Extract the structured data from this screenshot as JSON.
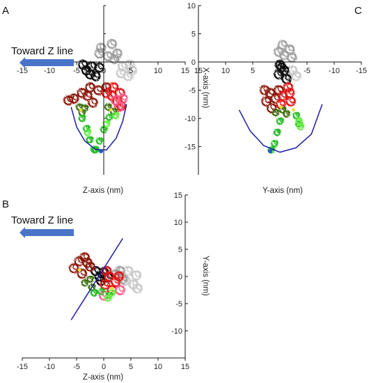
{
  "figure": {
    "toward_label": "Toward Z line",
    "colors": {
      "axis": "#111111",
      "arc": "#1a1aa8",
      "arrow": "#4a74c8",
      "gray": "#9e9e9e",
      "light_gray": "#c8c8c8",
      "black": "#111111",
      "dark_red": "#8b1a0e",
      "red": "#e01818",
      "pink": "#ff5c8a",
      "dark_green": "#3c6e10",
      "green": "#22bb22",
      "light_green": "#66ee44",
      "yellow": "#e8e030",
      "blue_dot": "#2255cc"
    }
  },
  "chart_data": [
    {
      "type": "scatter",
      "panel_label": "A",
      "xlabel": "Z-axis (nm)",
      "ylabel": "",
      "xlim": [
        -15,
        15
      ],
      "ylim": [
        -20,
        10
      ],
      "x_ticks": [
        "-15",
        "-10",
        "-5",
        "0",
        "5",
        "10",
        "15"
      ],
      "y_ticks": [],
      "arc": [
        [
          -6,
          -8
        ],
        [
          -5,
          -11.5
        ],
        [
          -3.5,
          -14
        ],
        [
          -1.5,
          -15.5
        ],
        [
          0.5,
          -15.6
        ],
        [
          2.3,
          -13.5
        ],
        [
          3.5,
          -10.5
        ],
        [
          4.2,
          -7.5
        ]
      ],
      "blue_dot": [
        -0.5,
        -15.8
      ],
      "yellow_dots": [
        [
          -4.2,
          -8.5
        ],
        [
          1.3,
          -8.5
        ]
      ],
      "blobs": [
        {
          "color": "gray",
          "points": [
            [
              -0.5,
              2.5
            ],
            [
              1.5,
              3.2
            ],
            [
              2.5,
              1.5
            ],
            [
              0.8,
              1.0
            ],
            [
              -0.8,
              1.5
            ],
            [
              2.0,
              0.5
            ]
          ]
        },
        {
          "color": "light_gray",
          "points": [
            [
              3.5,
              -0.8
            ],
            [
              5.2,
              -1.5
            ],
            [
              4.5,
              -2.5
            ],
            [
              3.2,
              -2.0
            ],
            [
              4.8,
              -0.5
            ]
          ]
        },
        {
          "color": "black",
          "points": [
            [
              -3.8,
              -0.5
            ],
            [
              -2.2,
              -0.8
            ],
            [
              -0.8,
              -1.0
            ],
            [
              -2.5,
              -2.2
            ],
            [
              -3.2,
              -1.5
            ],
            [
              -1.5,
              -2.5
            ]
          ]
        },
        {
          "color": "dark_red",
          "points": [
            [
              -5.5,
              -6.5
            ],
            [
              -4.0,
              -5.5
            ],
            [
              -2.5,
              -4.5
            ],
            [
              -1.0,
              -5.0
            ],
            [
              0.5,
              -4.5
            ],
            [
              -3.0,
              -6.0
            ],
            [
              -6.5,
              -6.8
            ],
            [
              -2.0,
              -7.2
            ]
          ]
        },
        {
          "color": "red",
          "points": [
            [
              0.5,
              -5.5
            ],
            [
              1.5,
              -6.0
            ],
            [
              2.5,
              -7.0
            ],
            [
              3.2,
              -7.8
            ],
            [
              1.8,
              -4.5
            ],
            [
              3.0,
              -5.5
            ]
          ]
        },
        {
          "color": "pink",
          "points": [
            [
              2.2,
              -6.8
            ],
            [
              3.5,
              -6.5
            ],
            [
              2.8,
              -8.0
            ]
          ]
        },
        {
          "color": "dark_green",
          "points": [
            [
              -4.5,
              -8.0
            ],
            [
              -4.0,
              -9.0
            ],
            [
              -3.5,
              -8.2
            ],
            [
              0.8,
              -8.0
            ],
            [
              1.8,
              -8.8
            ]
          ]
        },
        {
          "color": "green",
          "points": [
            [
              -4.0,
              -10.0
            ],
            [
              -3.2,
              -11.8
            ],
            [
              -2.6,
              -13.8
            ],
            [
              -1.8,
              -15.5
            ],
            [
              1.0,
              -9.8
            ],
            [
              0.0,
              -12.0
            ],
            [
              -0.8,
              -14.0
            ],
            [
              -1.5,
              -15.6
            ]
          ]
        },
        {
          "color": "light_green",
          "points": [
            [
              2.2,
              -9.5
            ],
            [
              0.5,
              -11.0
            ],
            [
              -3.0,
              -12.5
            ]
          ]
        }
      ]
    },
    {
      "type": "scatter",
      "panel_label": "C",
      "xlabel": "Y-axis (nm)",
      "ylabel": "X-axis (nm)",
      "xlim": [
        15,
        -15
      ],
      "ylim": [
        -20,
        10
      ],
      "x_ticks": [
        "15",
        "10",
        "5",
        "0",
        "-5",
        "-10",
        "-15"
      ],
      "y_ticks": [
        "10",
        "5",
        "0",
        "-5",
        "-10",
        "-15"
      ],
      "arc": [
        [
          7.5,
          -8.5
        ],
        [
          5.5,
          -12.2
        ],
        [
          3.0,
          -14.8
        ],
        [
          0.0,
          -16.0
        ],
        [
          -3.0,
          -15.2
        ],
        [
          -5.8,
          -12.8
        ],
        [
          -7.8,
          -7.5
        ]
      ],
      "blue_dot": [
        1.8,
        -15.8
      ],
      "yellow_dots": [
        [
          -0.2,
          -8.0
        ],
        [
          -2.5,
          -8.5
        ]
      ],
      "blobs": [
        {
          "color": "gray",
          "points": [
            [
              -0.5,
              3.0
            ],
            [
              -1.8,
              2.2
            ],
            [
              -0.8,
              1.2
            ],
            [
              -2.2,
              0.8
            ],
            [
              0.2,
              1.8
            ]
          ]
        },
        {
          "color": "light_gray",
          "points": [
            [
              -2.3,
              -1.5
            ],
            [
              -1.2,
              -2.2
            ],
            [
              -3.0,
              -2.5
            ]
          ]
        },
        {
          "color": "black",
          "points": [
            [
              0.0,
              -0.5
            ],
            [
              -0.8,
              -1.5
            ],
            [
              0.2,
              -2.2
            ],
            [
              -1.2,
              -3.0
            ],
            [
              -0.3,
              -1.0
            ]
          ]
        },
        {
          "color": "dark_red",
          "points": [
            [
              1.8,
              -5.5
            ],
            [
              2.5,
              -7.0
            ],
            [
              0.8,
              -6.5
            ],
            [
              2.8,
              -5.0
            ],
            [
              0.2,
              -5.0
            ],
            [
              1.5,
              -8.2
            ]
          ]
        },
        {
          "color": "red",
          "points": [
            [
              -0.5,
              -6.0
            ],
            [
              -1.8,
              -5.5
            ],
            [
              -0.2,
              -7.5
            ],
            [
              -1.5,
              -4.5
            ],
            [
              -2.0,
              -7.0
            ]
          ]
        },
        {
          "color": "dark_green",
          "points": [
            [
              -0.5,
              -8.5
            ],
            [
              0.8,
              -9.0
            ],
            [
              -1.2,
              -9.2
            ]
          ]
        },
        {
          "color": "green",
          "points": [
            [
              0.0,
              -10.5
            ],
            [
              0.5,
              -12.5
            ],
            [
              1.0,
              -14.5
            ],
            [
              1.6,
              -15.6
            ],
            [
              -3.0,
              -9.5
            ],
            [
              -3.5,
              -11.0
            ]
          ]
        },
        {
          "color": "light_green",
          "points": [
            [
              -3.5,
              -10.5
            ],
            [
              -3.8,
              -11.5
            ]
          ]
        }
      ]
    },
    {
      "type": "scatter",
      "panel_label": "B",
      "xlabel": "Z-axis (nm)",
      "ylabel": "Y-axis (nm)",
      "xlim": [
        -15,
        15
      ],
      "ylim": [
        -15,
        15
      ],
      "x_ticks": [
        "-15",
        "-10",
        "-5",
        "0",
        "5",
        "10",
        "15"
      ],
      "y_ticks": [
        "15",
        "10",
        "5",
        "0",
        "-5",
        "-10"
      ],
      "line": [
        [
          -6,
          -8
        ],
        [
          3.5,
          7
        ]
      ],
      "yellow_dots": [
        [
          -4.5,
          1.2
        ],
        [
          1.5,
          -2.2
        ]
      ],
      "blobs": [
        {
          "color": "light_gray",
          "points": [
            [
              4.5,
              1.0
            ],
            [
              6.0,
              0.2
            ],
            [
              5.5,
              -1.5
            ],
            [
              4.0,
              -0.8
            ],
            [
              6.2,
              -2.2
            ]
          ]
        },
        {
          "color": "gray",
          "points": [
            [
              3.0,
              1.0
            ],
            [
              3.5,
              -0.5
            ],
            [
              2.2,
              0.4
            ]
          ]
        },
        {
          "color": "black",
          "points": [
            [
              -1.5,
              1.0
            ],
            [
              -0.8,
              0.0
            ],
            [
              0.0,
              0.8
            ],
            [
              -0.5,
              -0.8
            ],
            [
              0.8,
              -0.2
            ]
          ]
        },
        {
          "color": "dark_red",
          "points": [
            [
              -4.5,
              2.8
            ],
            [
              -3.0,
              2.5
            ],
            [
              -5.5,
              1.5
            ],
            [
              -2.5,
              1.8
            ],
            [
              -4.0,
              0.5
            ],
            [
              -3.5,
              3.5
            ]
          ]
        },
        {
          "color": "red",
          "points": [
            [
              1.0,
              0.0
            ],
            [
              2.2,
              -1.0
            ],
            [
              1.5,
              -2.5
            ],
            [
              0.2,
              -1.5
            ],
            [
              2.8,
              0.0
            ],
            [
              0.5,
              1.0
            ]
          ]
        },
        {
          "color": "pink",
          "points": [
            [
              3.0,
              -2.5
            ],
            [
              0.0,
              -3.5
            ]
          ]
        },
        {
          "color": "dark_green",
          "points": [
            [
              -2.5,
              -0.5
            ],
            [
              -3.5,
              -1.2
            ],
            [
              -2.2,
              -2.0
            ]
          ]
        },
        {
          "color": "green",
          "points": [
            [
              -0.5,
              -2.8
            ],
            [
              1.0,
              -3.5
            ],
            [
              -1.8,
              -3.0
            ]
          ]
        },
        {
          "color": "light_green",
          "points": [
            [
              0.8,
              -4.0
            ],
            [
              1.5,
              -3.0
            ]
          ]
        }
      ]
    }
  ]
}
